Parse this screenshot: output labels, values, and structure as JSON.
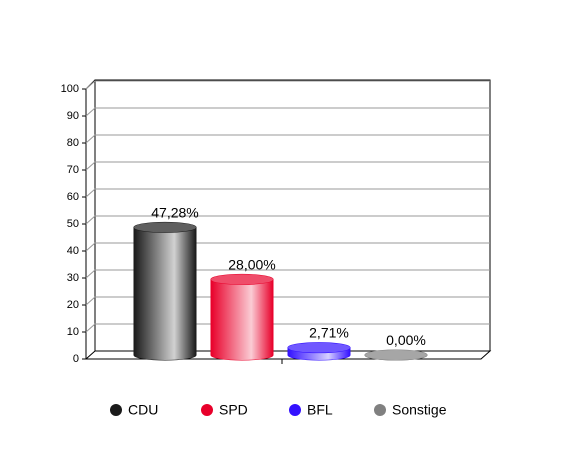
{
  "chart_data": {
    "type": "bar",
    "categories": [
      "CDU",
      "SPD",
      "BFL",
      "Sonstige"
    ],
    "values": [
      47.28,
      28.0,
      2.71,
      0.0
    ],
    "value_labels": [
      "47,28%",
      "28,00%",
      "2,71%",
      "0,00%"
    ],
    "colors": [
      "#1a1a1a",
      "#e8002a",
      "#3311ff",
      "#808080"
    ],
    "ylim": [
      0,
      100
    ],
    "yticks": [
      0,
      10,
      20,
      30,
      40,
      50,
      60,
      70,
      80,
      90,
      100
    ],
    "grid": true
  }
}
